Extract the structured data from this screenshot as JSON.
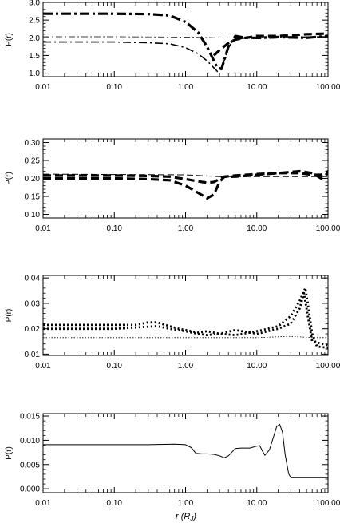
{
  "figure": {
    "xlabel": "r (R",
    "xlabel_sub": "J",
    "xlabel_close": ")"
  },
  "chart_data": [
    {
      "type": "line",
      "ylabel": "P(r)",
      "xscale": "log",
      "xlim": [
        0.01,
        100
      ],
      "ylim": [
        0.9,
        3.0
      ],
      "yticks": [
        "1.0",
        "1.5",
        "2.0",
        "2.5",
        "3.0"
      ],
      "ytick_values": [
        1.0,
        1.5,
        2.0,
        2.5,
        3.0
      ],
      "xticks": [
        "0.01",
        "0.10",
        "1.00",
        "10.00",
        "100.00"
      ],
      "xtick_values": [
        0.01,
        0.1,
        1,
        10,
        100
      ],
      "series": [
        {
          "style": "dashdot-thick",
          "x": [
            0.01,
            0.1,
            0.3,
            0.6,
            1.0,
            1.5,
            2.0,
            2.5,
            2.8,
            3.2,
            4.0,
            5.0,
            7.0,
            10,
            20,
            50,
            100
          ],
          "y": [
            2.68,
            2.68,
            2.67,
            2.63,
            2.45,
            2.15,
            1.75,
            1.35,
            1.15,
            1.12,
            1.75,
            2.05,
            2.0,
            2.0,
            2.02,
            2.0,
            2.05
          ]
        },
        {
          "style": "dashdot-thin",
          "x": [
            0.01,
            0.1,
            0.3,
            0.6,
            1.0,
            1.5,
            2.0,
            2.5,
            2.8,
            3.2,
            4.0,
            5.0,
            7.0,
            10,
            20,
            50,
            100
          ],
          "y": [
            1.88,
            1.88,
            1.86,
            1.83,
            1.72,
            1.55,
            1.35,
            1.15,
            1.05,
            1.1,
            1.75,
            1.95,
            2.0,
            1.98,
            2.0,
            2.02,
            2.03
          ]
        },
        {
          "style": "thin-dashdot",
          "x": [
            0.01,
            0.1,
            1.0,
            3.0,
            10,
            100
          ],
          "y": [
            2.03,
            2.03,
            2.02,
            2.0,
            2.0,
            2.0
          ]
        },
        {
          "style": "dash-thick",
          "x": [
            2.5,
            3.0,
            4.0,
            5.0,
            7.0,
            10,
            20,
            50,
            100
          ],
          "y": [
            1.5,
            1.65,
            1.85,
            1.95,
            2.0,
            2.05,
            2.05,
            2.1,
            2.12
          ]
        }
      ]
    },
    {
      "type": "line",
      "ylabel": "P(r)",
      "xscale": "log",
      "xlim": [
        0.01,
        100
      ],
      "ylim": [
        0.09,
        0.31
      ],
      "yticks": [
        "0.10",
        "0.15",
        "0.20",
        "0.25",
        "0.30"
      ],
      "ytick_values": [
        0.1,
        0.15,
        0.2,
        0.25,
        0.3
      ],
      "xticks": [
        "0.01",
        "0.10",
        "1.00",
        "10.00",
        "100.00"
      ],
      "xtick_values": [
        0.01,
        0.1,
        1,
        10,
        100
      ],
      "series": [
        {
          "style": "dash-thick",
          "x": [
            0.01,
            0.1,
            0.3,
            0.6,
            1.0,
            1.5,
            2.0,
            2.5,
            3.0,
            3.5,
            5.0,
            10,
            20,
            40,
            60,
            80,
            100
          ],
          "y": [
            0.2,
            0.2,
            0.198,
            0.195,
            0.18,
            0.16,
            0.145,
            0.155,
            0.19,
            0.205,
            0.205,
            0.21,
            0.215,
            0.215,
            0.21,
            0.21,
            0.22
          ]
        },
        {
          "style": "dash-thick",
          "x": [
            0.01,
            0.1,
            0.3,
            0.6,
            1.0,
            1.5,
            2.0,
            2.5,
            3.0,
            3.5,
            5.0,
            10,
            20,
            40,
            60,
            80,
            100
          ],
          "y": [
            0.208,
            0.208,
            0.207,
            0.205,
            0.198,
            0.192,
            0.188,
            0.19,
            0.198,
            0.205,
            0.208,
            0.212,
            0.215,
            0.22,
            0.215,
            0.2,
            0.215
          ]
        },
        {
          "style": "dash-thin",
          "x": [
            0.01,
            0.1,
            1.0,
            3.0,
            10,
            100
          ],
          "y": [
            0.212,
            0.211,
            0.21,
            0.205,
            0.205,
            0.205
          ]
        }
      ]
    },
    {
      "type": "line",
      "ylabel": "P(r)",
      "xscale": "log",
      "xlim": [
        0.01,
        100
      ],
      "ylim": [
        0.0095,
        0.041
      ],
      "yticks": [
        "0.01",
        "0.02",
        "0.03",
        "0.04"
      ],
      "ytick_values": [
        0.01,
        0.02,
        0.03,
        0.04
      ],
      "xticks": [
        "0.01",
        "0.10",
        "1.00",
        "10.00",
        "100.00"
      ],
      "xtick_values": [
        0.01,
        0.1,
        1,
        10,
        100
      ],
      "series": [
        {
          "style": "dot-thick",
          "x": [
            0.01,
            0.05,
            0.1,
            0.2,
            0.3,
            0.4,
            0.6,
            0.8,
            1.0,
            1.5,
            2.0,
            3.0,
            5.0,
            8.0,
            12,
            20,
            30,
            40,
            48,
            52,
            60,
            70,
            100
          ],
          "y": [
            0.0215,
            0.0215,
            0.0215,
            0.0215,
            0.0225,
            0.0225,
            0.021,
            0.02,
            0.0195,
            0.0185,
            0.019,
            0.018,
            0.0175,
            0.0185,
            0.0195,
            0.021,
            0.025,
            0.031,
            0.036,
            0.03,
            0.018,
            0.013,
            0.0125
          ]
        },
        {
          "style": "dot-thick",
          "x": [
            0.01,
            0.05,
            0.1,
            0.2,
            0.4,
            0.6,
            1.0,
            1.5,
            2.0,
            3.0,
            5.0,
            10,
            20,
            30,
            40,
            46,
            52,
            60,
            100
          ],
          "y": [
            0.02,
            0.02,
            0.02,
            0.0205,
            0.021,
            0.02,
            0.019,
            0.018,
            0.0175,
            0.018,
            0.0195,
            0.018,
            0.02,
            0.022,
            0.028,
            0.034,
            0.025,
            0.015,
            0.0135
          ]
        },
        {
          "style": "dot-thin",
          "x": [
            0.01,
            0.1,
            0.3,
            1.0,
            3.0,
            10,
            30,
            60,
            100
          ],
          "y": [
            0.0165,
            0.0165,
            0.0165,
            0.0165,
            0.0165,
            0.0165,
            0.017,
            0.0165,
            0.0165
          ]
        }
      ]
    },
    {
      "type": "line",
      "ylabel": "P(r)",
      "xscale": "log",
      "xlim": [
        0.01,
        100
      ],
      "ylim": [
        -0.0008,
        0.0155
      ],
      "yticks": [
        "0.000",
        "0.005",
        "0.010",
        "0.015"
      ],
      "ytick_values": [
        0.0,
        0.005,
        0.01,
        0.015
      ],
      "xticks": [
        "0.01",
        "0.10",
        "1.00",
        "10.00",
        "100.00"
      ],
      "xtick_values": [
        0.01,
        0.1,
        1,
        10,
        100
      ],
      "series": [
        {
          "style": "solid",
          "x": [
            0.01,
            0.1,
            0.3,
            0.7,
            1.0,
            1.2,
            1.4,
            1.7,
            2.0,
            2.5,
            3.0,
            3.5,
            4.0,
            5.0,
            6.0,
            8.0,
            10,
            11,
            12,
            13,
            15,
            17,
            19,
            21,
            23,
            25,
            28,
            30,
            40,
            60,
            100
          ],
          "y": [
            0.0091,
            0.0091,
            0.0091,
            0.0092,
            0.0091,
            0.0085,
            0.0073,
            0.0072,
            0.0072,
            0.0071,
            0.0068,
            0.0064,
            0.0068,
            0.0083,
            0.0084,
            0.0084,
            0.0088,
            0.0089,
            0.0078,
            0.0069,
            0.008,
            0.0105,
            0.0128,
            0.0133,
            0.0116,
            0.007,
            0.0031,
            0.0023,
            0.0023,
            0.0023,
            0.0023
          ]
        }
      ]
    }
  ]
}
